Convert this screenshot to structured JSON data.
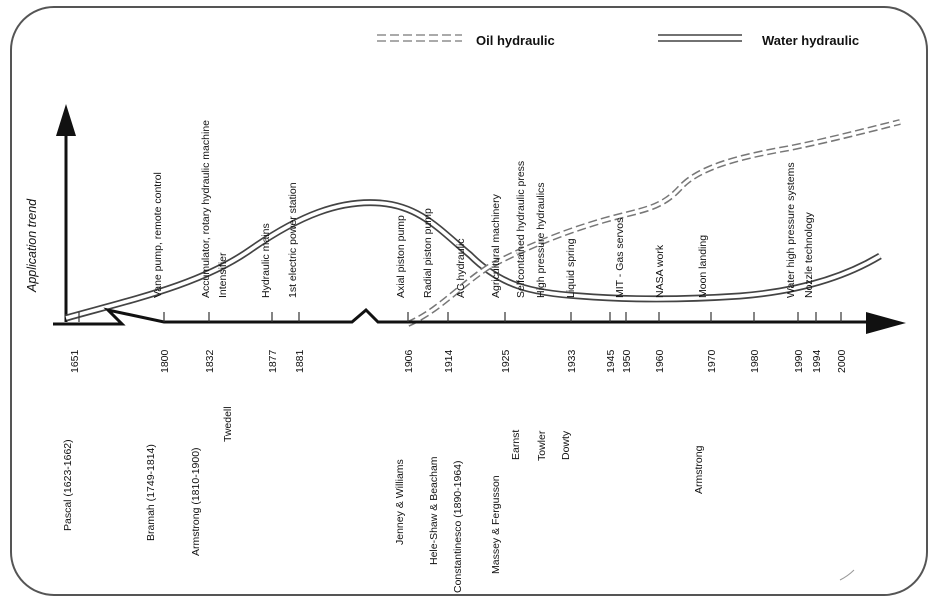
{
  "legend": {
    "oil": "Oil hydraulic",
    "water": "Water hydraulic"
  },
  "y_axis_label": "Application trend",
  "years": [
    "1651",
    "1800",
    "1832",
    "1877",
    "1881",
    "1906",
    "1914",
    "1925",
    "1933",
    "1945",
    "1950",
    "1960",
    "1970",
    "1980",
    "1990",
    "1994",
    "2000"
  ],
  "events": [
    "Vane pump, remote control",
    "Accumulator, rotary hydraulic machine",
    "Intensifier",
    "Hydraulic mains",
    "1st electric power station",
    "Axial piston pump",
    "Radial piston pump",
    "AC hydraulic",
    "Agricultural machinery",
    "Selfcontained hydraulic press",
    "High pressure hydraulics",
    "Liquid spring",
    "MIT - Gas servos",
    "NASA work",
    "Moon landing",
    "Water high pressure systems",
    "Nozzle technology"
  ],
  "people": [
    "Pascal (1623-1662)",
    "Bramah (1749-1814)",
    "Armstrong (1810-1900)",
    "Twedell",
    "Jenney & Williams",
    "Hele-Shaw & Beacham",
    "Constantinesco (1890-1964)",
    "Massey & Fergusson",
    "Earnst",
    "Towler",
    "Dowty",
    "Armstrong"
  ]
}
